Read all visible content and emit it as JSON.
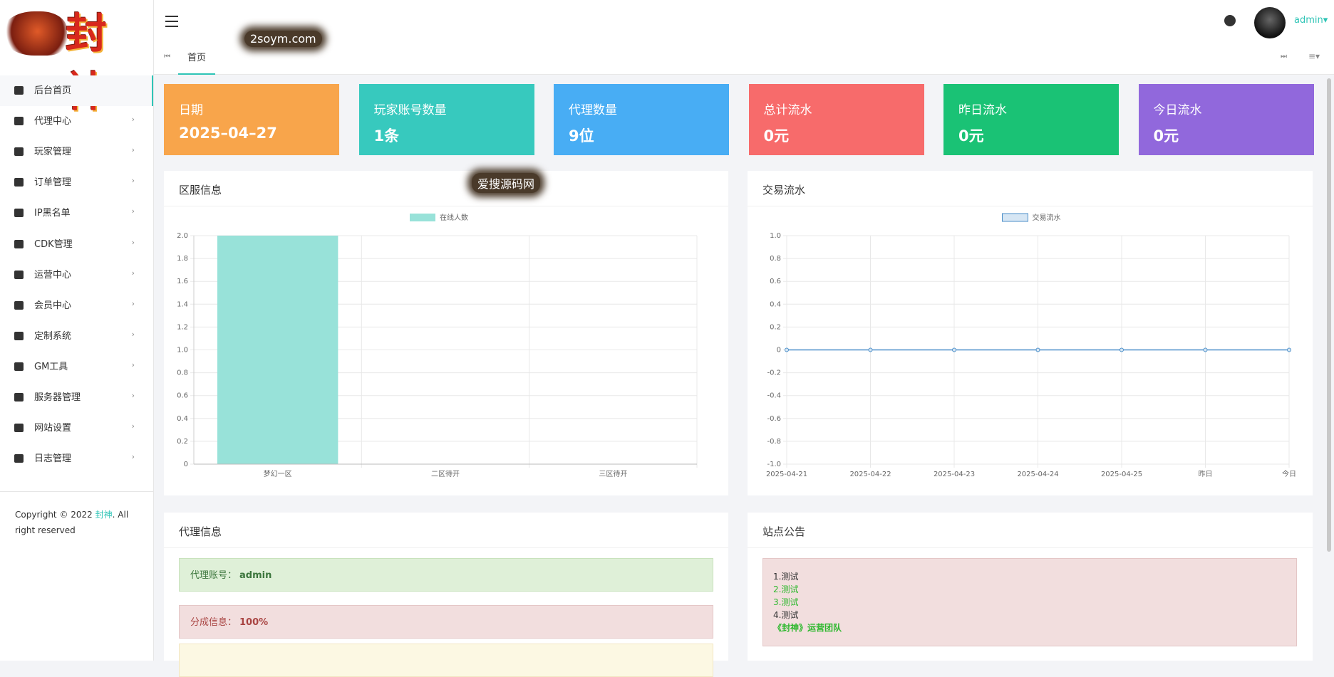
{
  "header": {
    "logo": "封神",
    "tab": "首页",
    "user": "admin"
  },
  "watermarks": [
    "2soym.com",
    "爱搜源码网"
  ],
  "sidebar": {
    "menu": [
      "后台首页",
      "代理中心",
      "玩家管理",
      "订单管理",
      "IP黑名单",
      "CDK管理",
      "运营中心",
      "会员中心",
      "定制系统",
      "GM工具",
      "服务器管理",
      "网站设置",
      "日志管理"
    ],
    "copyright": {
      "prefix": "Copyright © 2022",
      "brand": "封神",
      "suffix": ". All right reserved"
    }
  },
  "stats": [
    {
      "label": "日期",
      "value": "2025–04–27"
    },
    {
      "label": "玩家账号数量",
      "value": "1条"
    },
    {
      "label": "代理数量",
      "value": "9位"
    },
    {
      "label": "总计流水",
      "value": "0元"
    },
    {
      "label": "昨日流水",
      "value": "0元"
    },
    {
      "label": "今日流水",
      "value": "0元"
    }
  ],
  "panels": {
    "zone": "区服信息",
    "trade": "交易流水",
    "agent": "代理信息",
    "notice": "站点公告"
  },
  "chart_data": [
    {
      "type": "bar",
      "categories": [
        "梦幻一区",
        "二区待开",
        "三区待开"
      ],
      "series": [
        {
          "name": "在线人数",
          "color": "#98e2d9",
          "values": [
            2,
            0,
            0
          ]
        }
      ],
      "ylim": [
        0,
        2
      ],
      "yticks": [
        0,
        0.2,
        0.4,
        0.6,
        0.8,
        {
          "value": 1,
          "label": "1.0"
        },
        1.2,
        1.4,
        1.6,
        1.8,
        {
          "value": 2,
          "label": "2.0"
        }
      ],
      "grid": true
    },
    {
      "type": "line",
      "categories": [
        "2025-04-21",
        "2025-04-22",
        "2025-04-23",
        "2025-04-24",
        "2025-04-25",
        "昨日",
        "今日"
      ],
      "series": [
        {
          "name": "交易流水",
          "color": "#4c8fc9",
          "values": [
            0,
            0,
            0,
            0,
            0,
            0,
            0
          ]
        }
      ],
      "ylim": [
        -1,
        1
      ],
      "yticks": [
        {
          "value": -1,
          "label": "-1.0"
        },
        -0.8,
        -0.6,
        -0.4,
        -0.2,
        0,
        0.2,
        0.4,
        0.6,
        0.8,
        {
          "value": 1,
          "label": "1.0"
        }
      ],
      "grid": true
    }
  ],
  "agent": [
    {
      "label": "代理账号：",
      "value": "admin"
    },
    {
      "label": "分成信息：",
      "value": "100%"
    }
  ],
  "notice": [
    "1.测试",
    "2.测试",
    "3.测试",
    "4.测试",
    "《封神》运营团队"
  ]
}
